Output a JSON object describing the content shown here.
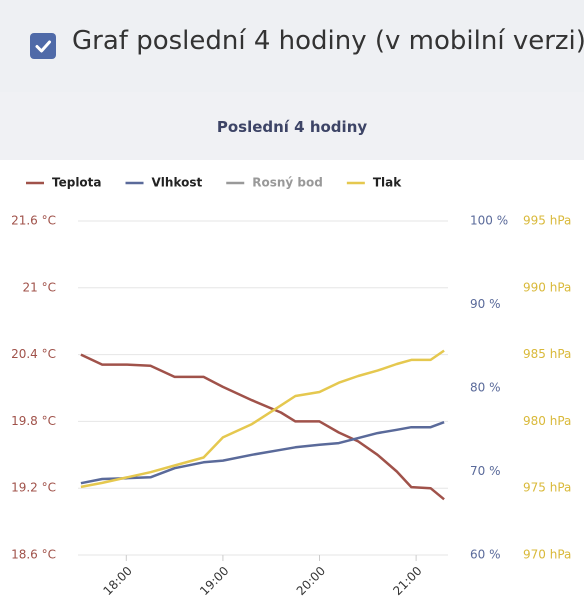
{
  "header": {
    "title": "Graf poslední 4 hodiny (v mobilní verzi)",
    "checked": true
  },
  "chart_data": {
    "type": "line",
    "title": "Poslední 4 hodiny",
    "x": [
      17.53,
      17.75,
      18,
      18.25,
      18.5,
      18.8,
      19,
      19.3,
      19.6,
      19.75,
      20,
      20.2,
      20.4,
      20.6,
      20.8,
      20.95,
      21.15,
      21.29
    ],
    "xlim": [
      17.5,
      21.33
    ],
    "xticks": [
      {
        "value": 18,
        "label": "18:00"
      },
      {
        "value": 19,
        "label": "19:00"
      },
      {
        "value": 20,
        "label": "20:00"
      },
      {
        "value": 21,
        "label": "21:00"
      }
    ],
    "ylim": [
      18.6,
      21.6
    ],
    "yticks": [
      {
        "value": 18.6,
        "label": "18.6 °C"
      },
      {
        "value": 19.2,
        "label": "19.2 °C"
      },
      {
        "value": 19.8,
        "label": "19.8 °C"
      },
      {
        "value": 20.4,
        "label": "20.4 °C"
      },
      {
        "value": 21,
        "label": "21 °C"
      },
      {
        "value": 21.6,
        "label": "21.6 °C"
      }
    ],
    "y2lim": [
      60,
      100
    ],
    "y2ticks": [
      {
        "value": 60,
        "label": "60 %"
      },
      {
        "value": 70,
        "label": "70 %"
      },
      {
        "value": 80,
        "label": "80 %"
      },
      {
        "value": 90,
        "label": "90 %"
      },
      {
        "value": 100,
        "label": "100 %"
      }
    ],
    "y3lim": [
      970,
      995
    ],
    "y3ticks": [
      {
        "value": 970,
        "label": "970 hPa"
      },
      {
        "value": 975,
        "label": "975 hPa"
      },
      {
        "value": 980,
        "label": "980 hPa"
      },
      {
        "value": 985,
        "label": "985 hPa"
      },
      {
        "value": 990,
        "label": "990 hPa"
      },
      {
        "value": 995,
        "label": "995 hPa"
      }
    ],
    "grid": true,
    "series": [
      {
        "name": "Teplota",
        "color": "#a0524a",
        "axis": "y",
        "values": [
          20.4,
          20.31,
          20.31,
          20.3,
          20.2,
          20.2,
          20.11,
          19.99,
          19.88,
          19.8,
          19.8,
          19.7,
          19.62,
          19.5,
          19.35,
          19.21,
          19.2,
          19.1
        ]
      },
      {
        "name": "Vlhkost",
        "color": "#5a6a9a",
        "axis": "y2",
        "values": [
          68.6,
          69.1,
          69.2,
          69.3,
          70.4,
          71.1,
          71.3,
          72.0,
          72.6,
          72.9,
          73.2,
          73.4,
          74.0,
          74.6,
          75.0,
          75.3,
          75.3,
          75.9
        ]
      },
      {
        "name": "Rosný bod",
        "color": "#999999",
        "hidden": true,
        "axis": "y",
        "values": [
          null,
          null,
          null,
          null,
          null,
          null,
          null,
          null,
          null,
          null,
          null,
          null,
          null,
          null,
          null,
          null,
          null,
          null
        ]
      },
      {
        "name": "Tlak",
        "color": "#e5c84f",
        "axis": "y3",
        "values": [
          975.1,
          975.4,
          975.8,
          976.2,
          976.7,
          977.3,
          978.8,
          979.8,
          981.2,
          981.9,
          982.2,
          982.9,
          983.4,
          983.8,
          984.3,
          984.6,
          984.6,
          985.3
        ]
      }
    ]
  }
}
